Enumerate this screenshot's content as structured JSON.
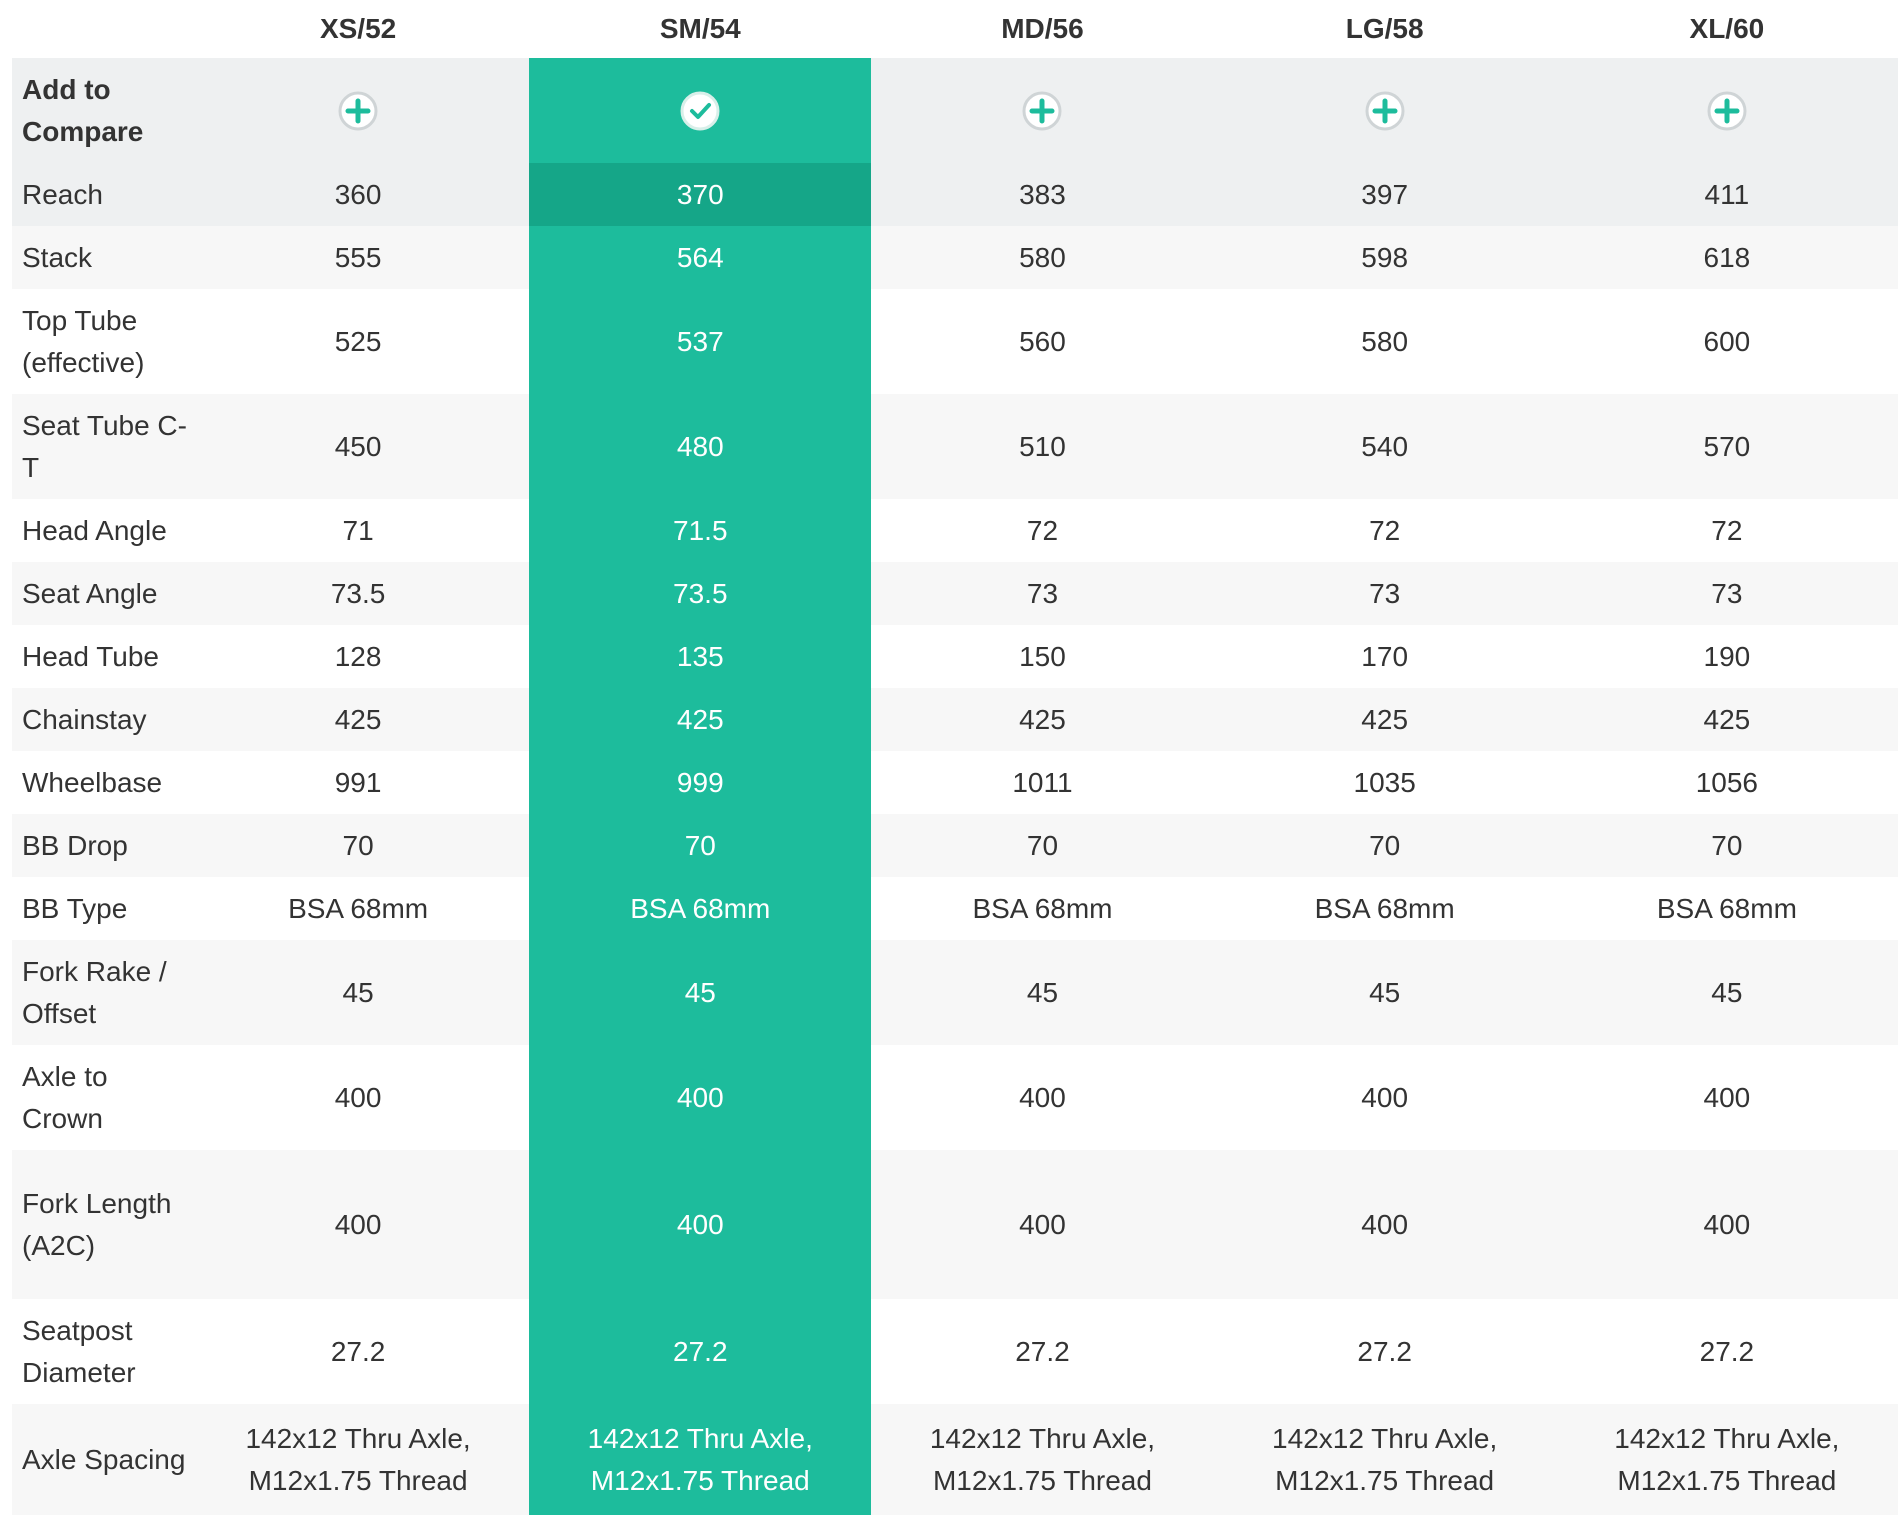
{
  "table": {
    "columns": [
      "XS/52",
      "SM/54",
      "MD/56",
      "LG/58",
      "XL/60"
    ],
    "compare_label": "Add to Compare",
    "rows": [
      {
        "label": "Reach",
        "values": [
          "360",
          "370",
          "383",
          "397",
          "411"
        ]
      },
      {
        "label": "Stack",
        "values": [
          "555",
          "564",
          "580",
          "598",
          "618"
        ]
      },
      {
        "label": "Top Tube (effective)",
        "values": [
          "525",
          "537",
          "560",
          "580",
          "600"
        ]
      },
      {
        "label": "Seat Tube C-T",
        "values": [
          "450",
          "480",
          "510",
          "540",
          "570"
        ]
      },
      {
        "label": "Head Angle",
        "values": [
          "71",
          "71.5",
          "72",
          "72",
          "72"
        ]
      },
      {
        "label": "Seat Angle",
        "values": [
          "73.5",
          "73.5",
          "73",
          "73",
          "73"
        ]
      },
      {
        "label": "Head Tube",
        "values": [
          "128",
          "135",
          "150",
          "170",
          "190"
        ]
      },
      {
        "label": "Chainstay",
        "values": [
          "425",
          "425",
          "425",
          "425",
          "425"
        ]
      },
      {
        "label": "Wheelbase",
        "values": [
          "991",
          "999",
          "1011",
          "1035",
          "1056"
        ]
      },
      {
        "label": "BB Drop",
        "values": [
          "70",
          "70",
          "70",
          "70",
          "70"
        ]
      },
      {
        "label": "BB Type",
        "values": [
          "BSA 68mm",
          "BSA 68mm",
          "BSA 68mm",
          "BSA 68mm",
          "BSA 68mm"
        ]
      },
      {
        "label": "Fork Rake / Offset",
        "values": [
          "45",
          "45",
          "45",
          "45",
          "45"
        ]
      },
      {
        "label": "Axle to Crown",
        "values": [
          "400",
          "400",
          "400",
          "400",
          "400"
        ]
      },
      {
        "label": "Fork Length (A2C)",
        "values": [
          "400",
          "400",
          "400",
          "400",
          "400"
        ]
      },
      {
        "label": "Seatpost Diameter",
        "values": [
          "27.2",
          "27.2",
          "27.2",
          "27.2",
          "27.2"
        ]
      },
      {
        "label": "Axle Spacing",
        "values": [
          "142x12 Thru Axle, M12x1.75 Thread",
          "142x12 Thru Axle, M12x1.75 Thread",
          "142x12 Thru Axle, M12x1.75 Thread",
          "142x12 Thru Axle, M12x1.75 Thread",
          "142x12 Thru Axle, M12x1.75 Thread"
        ]
      }
    ]
  }
}
